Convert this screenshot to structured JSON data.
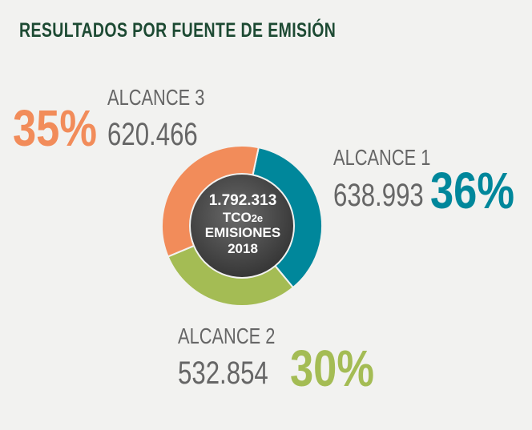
{
  "title": "RESULTADOS POR FUENTE DE EMISIÓN",
  "colors": {
    "alcance1": "#00879b",
    "alcance2": "#a4bc54",
    "alcance3": "#f28c5a",
    "title": "#1d4a33",
    "center": "#4a4a4a"
  },
  "center": {
    "total": "1.792.313",
    "unit_main": "TCO",
    "unit_sub": "2e",
    "label": "EMISIONES",
    "year": "2018"
  },
  "chart_data": {
    "type": "pie",
    "title": "RESULTADOS POR FUENTE DE EMISIÓN",
    "categories": [
      "ALCANCE 1",
      "ALCANCE 2",
      "ALCANCE 3"
    ],
    "values": [
      638993,
      532854,
      620466
    ],
    "value_labels": [
      "638.993",
      "532.854",
      "620.466"
    ],
    "percent_labels": [
      "36%",
      "30%",
      "35%"
    ],
    "total": 1792313
  }
}
